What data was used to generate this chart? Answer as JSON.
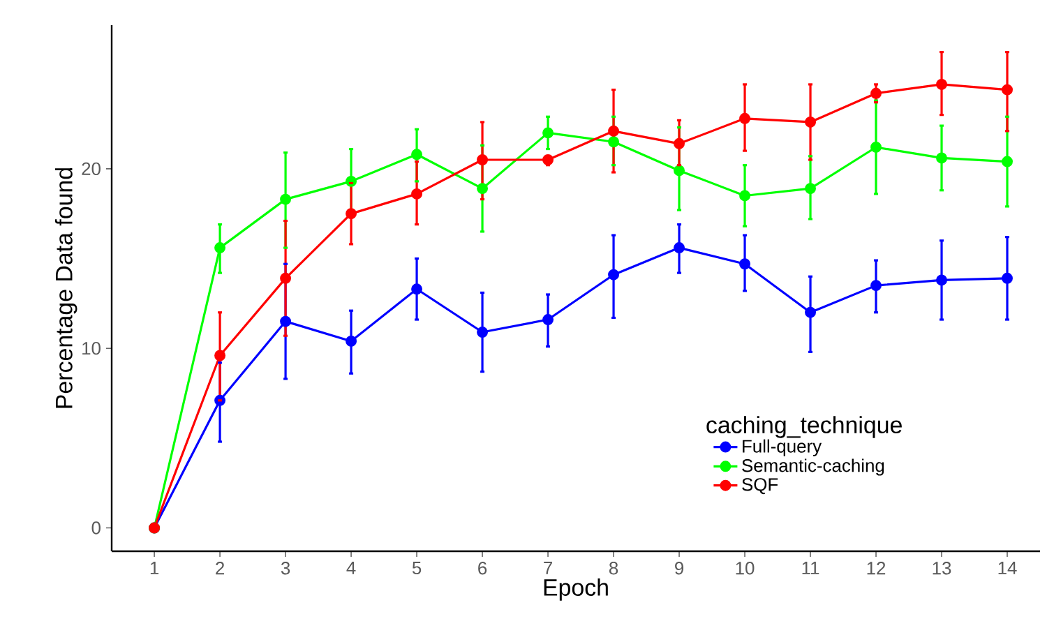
{
  "chart_data": {
    "type": "line",
    "xlabel": "Epoch",
    "ylabel": "Percentage Data found",
    "legend_title": "caching_technique",
    "x": [
      1,
      2,
      3,
      4,
      5,
      6,
      7,
      8,
      9,
      10,
      11,
      12,
      13,
      14
    ],
    "xlim": [
      0.35,
      14.5
    ],
    "xticks": [
      1,
      2,
      3,
      4,
      5,
      6,
      7,
      8,
      9,
      10,
      11,
      12,
      13,
      14
    ],
    "ylim": [
      -1.3,
      28
    ],
    "yticks": [
      0,
      10,
      20
    ],
    "grid": false,
    "legend": "bottom right",
    "marker": "circle",
    "line_style": "solid",
    "series": [
      {
        "name": "Full-query",
        "color": "#0000ff",
        "values": [
          0,
          7.1,
          11.5,
          10.4,
          13.3,
          10.9,
          11.6,
          14.1,
          15.6,
          14.7,
          12.0,
          13.5,
          13.8,
          13.9
        ],
        "errors": [
          null,
          [
            4.8,
            9.2
          ],
          [
            8.3,
            14.7
          ],
          [
            8.6,
            12.1
          ],
          [
            11.6,
            15.0
          ],
          [
            8.7,
            13.1
          ],
          [
            10.1,
            13.0
          ],
          [
            11.7,
            16.3
          ],
          [
            14.2,
            16.9
          ],
          [
            13.2,
            16.3
          ],
          [
            9.8,
            14.0
          ],
          [
            12.0,
            14.9
          ],
          [
            11.6,
            16.0
          ],
          [
            11.6,
            16.2
          ]
        ]
      },
      {
        "name": "Semantic-caching",
        "color": "#00ff00",
        "values": [
          0,
          15.6,
          18.3,
          19.3,
          20.8,
          18.9,
          22.0,
          21.5,
          19.9,
          18.5,
          18.9,
          21.2,
          20.6,
          20.4
        ],
        "errors": [
          null,
          [
            14.2,
            16.9
          ],
          [
            15.6,
            20.9
          ],
          [
            17.5,
            21.1
          ],
          [
            19.3,
            22.2
          ],
          [
            16.5,
            21.3
          ],
          [
            21.1,
            22.9
          ],
          [
            20.2,
            22.9
          ],
          [
            17.7,
            22.3
          ],
          [
            16.8,
            20.2
          ],
          [
            17.2,
            20.7
          ],
          [
            18.6,
            23.8
          ],
          [
            18.8,
            22.4
          ],
          [
            17.9,
            22.9
          ]
        ]
      },
      {
        "name": "SQF",
        "color": "#ff0000",
        "values": [
          0,
          9.6,
          13.9,
          17.5,
          18.6,
          20.5,
          20.5,
          22.1,
          21.4,
          22.8,
          22.6,
          24.2,
          24.7,
          24.4
        ],
        "errors": [
          null,
          [
            7.1,
            12.0
          ],
          [
            10.7,
            17.1
          ],
          [
            15.8,
            19.2
          ],
          [
            16.9,
            20.4
          ],
          [
            18.3,
            22.6
          ],
          [
            20.2,
            20.7
          ],
          [
            19.8,
            24.4
          ],
          [
            20.2,
            22.7
          ],
          [
            21.0,
            24.7
          ],
          [
            20.5,
            24.7
          ],
          [
            23.7,
            24.7
          ],
          [
            23.0,
            26.5
          ],
          [
            22.1,
            26.5
          ]
        ]
      }
    ]
  }
}
